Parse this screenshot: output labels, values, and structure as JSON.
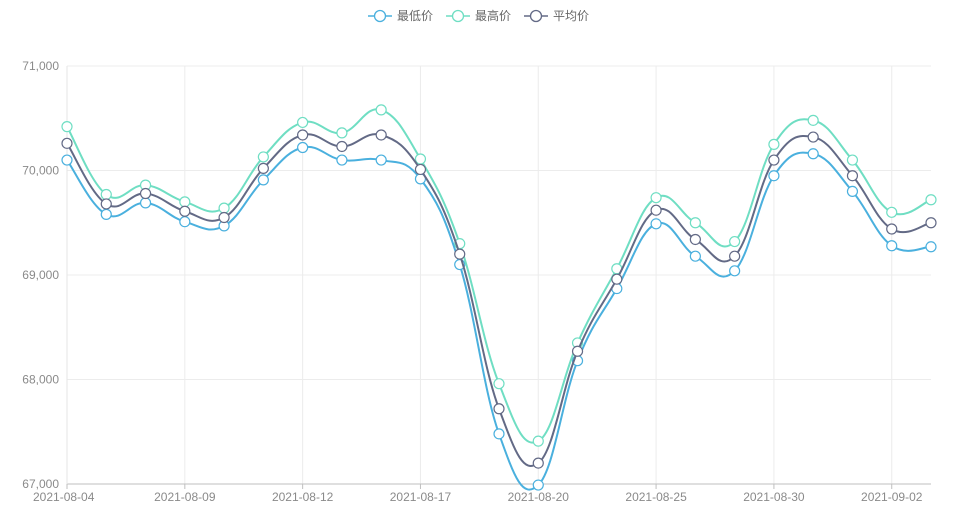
{
  "chart_data": {
    "type": "line",
    "title": "",
    "xlabel": "",
    "ylabel": "",
    "x": [
      "2021-08-04",
      "2021-08-05",
      "2021-08-06",
      "2021-08-09",
      "2021-08-10",
      "2021-08-11",
      "2021-08-12",
      "2021-08-13",
      "2021-08-16",
      "2021-08-17",
      "2021-08-18",
      "2021-08-19",
      "2021-08-20",
      "2021-08-23",
      "2021-08-24",
      "2021-08-25",
      "2021-08-26",
      "2021-08-27",
      "2021-08-30",
      "2021-08-31",
      "2021-09-01",
      "2021-09-02",
      "2021-09-03"
    ],
    "x_tick_labels": [
      "2021-08-04",
      "2021-08-09",
      "2021-08-12",
      "2021-08-17",
      "2021-08-20",
      "2021-08-25",
      "2021-08-30",
      "2021-09-02"
    ],
    "ylim": [
      67000,
      71000
    ],
    "y_ticks": [
      67000,
      68000,
      69000,
      70000,
      71000
    ],
    "y_tick_labels": [
      "67,000",
      "68,000",
      "69,000",
      "70,000",
      "71,000"
    ],
    "legend_position": "top-center",
    "grid": true,
    "series": [
      {
        "name": "最低价",
        "color": "#4ab0de",
        "values": [
          70100,
          69580,
          69690,
          69510,
          69470,
          69910,
          70220,
          70100,
          70100,
          69920,
          69100,
          67480,
          66990,
          68180,
          68870,
          69490,
          69180,
          69040,
          69950,
          70160,
          69800,
          69280,
          69270
        ]
      },
      {
        "name": "最高价",
        "color": "#6fdec3",
        "values": [
          70420,
          69770,
          69860,
          69700,
          69640,
          70130,
          70460,
          70360,
          70580,
          70110,
          69300,
          67960,
          67410,
          68350,
          69060,
          69740,
          69500,
          69320,
          70250,
          70480,
          70100,
          69600,
          69720
        ]
      },
      {
        "name": "平均价",
        "color": "#636a86",
        "values": [
          70260,
          69680,
          69780,
          69610,
          69550,
          70020,
          70340,
          70230,
          70340,
          70010,
          69200,
          67720,
          67200,
          68270,
          68960,
          69620,
          69340,
          69180,
          70100,
          70320,
          69950,
          69440,
          69500
        ]
      }
    ]
  }
}
